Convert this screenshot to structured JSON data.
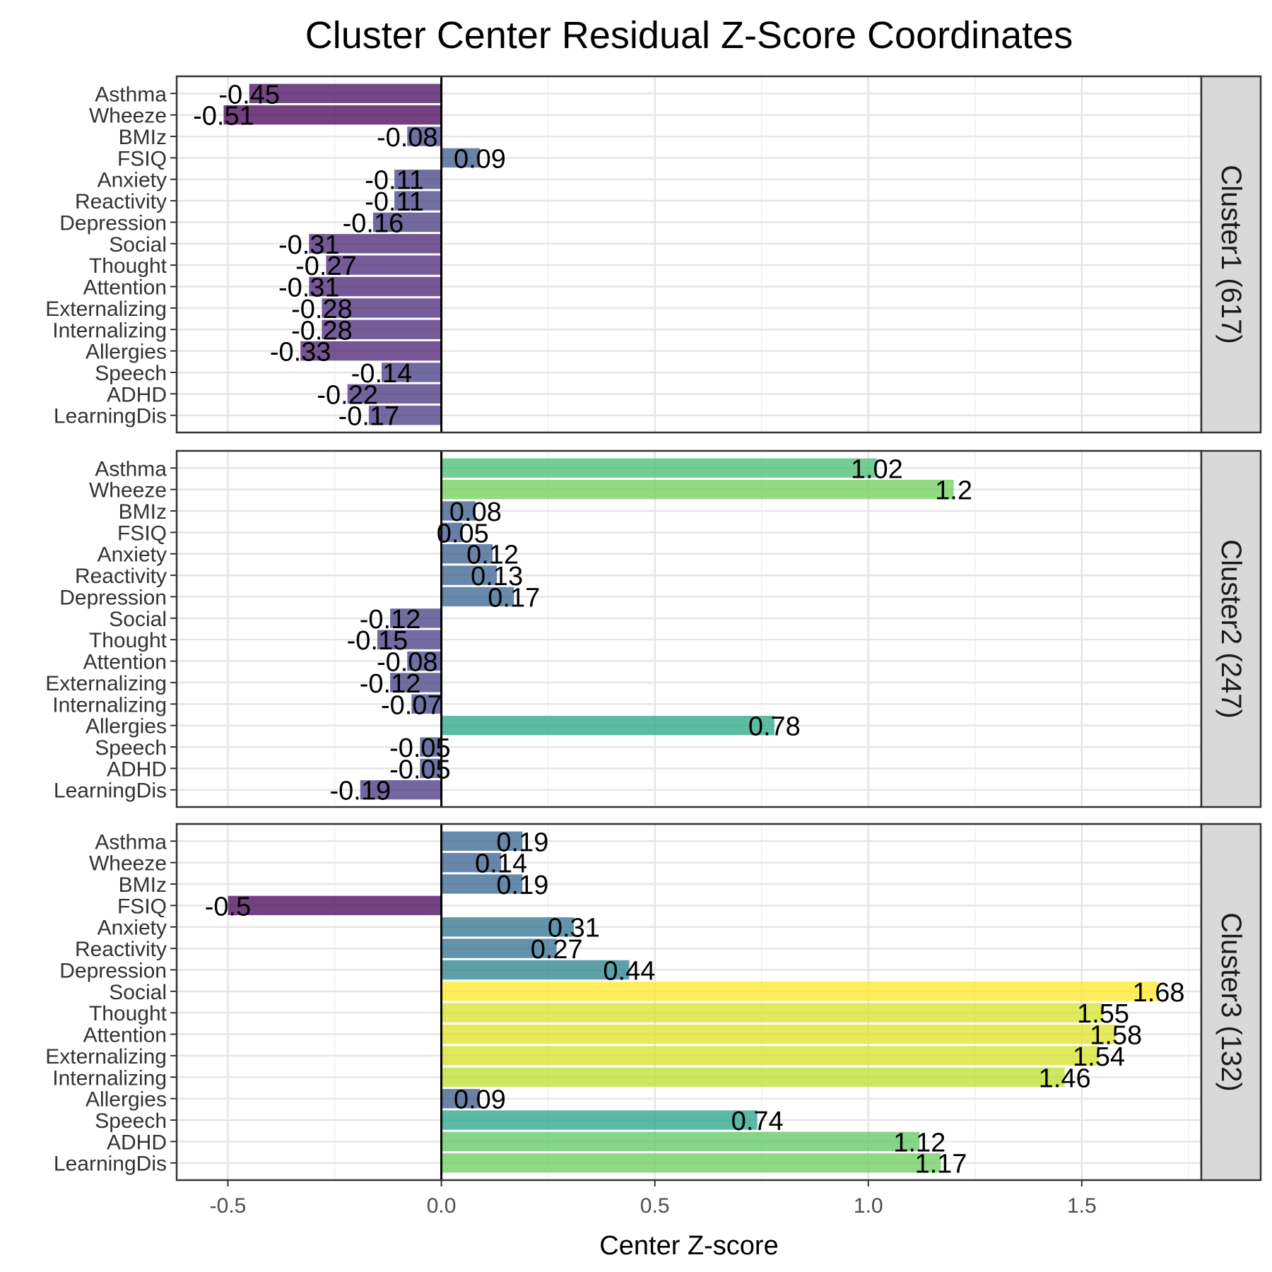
{
  "chart_data": {
    "type": "bar",
    "orientation": "horizontal",
    "title": "Cluster Center Residual Z-Score Coordinates",
    "xlabel": "Center Z-score",
    "xlim": [
      -0.62,
      1.78
    ],
    "xticks": [
      -0.5,
      0.0,
      0.5,
      1.0,
      1.5
    ],
    "xtick_labels": [
      "-0.5",
      "0.0",
      "0.5",
      "1.0",
      "1.5"
    ],
    "grid": true,
    "categories": [
      "Asthma",
      "Wheeze",
      "BMIz",
      "FSIQ",
      "Anxiety",
      "Reactivity",
      "Depression",
      "Social",
      "Thought",
      "Attention",
      "Externalizing",
      "Internalizing",
      "Allergies",
      "Speech",
      "ADHD",
      "LearningDis"
    ],
    "color_scale": "viridis",
    "color_range": [
      -0.51,
      1.68
    ],
    "panels": [
      {
        "name": "Cluster1 (617)",
        "values": [
          -0.45,
          -0.51,
          -0.08,
          0.09,
          -0.11,
          -0.11,
          -0.16,
          -0.31,
          -0.27,
          -0.31,
          -0.28,
          -0.28,
          -0.33,
          -0.14,
          -0.22,
          -0.17
        ],
        "labels": [
          "-0.45",
          "-0.51",
          "-0.08",
          "0.09",
          "-0.11",
          "-0.11",
          "-0.16",
          "-0.31",
          "-0.27",
          "-0.31",
          "-0.28",
          "-0.28",
          "-0.33",
          "-0.14",
          "-0.22",
          "-0.17"
        ]
      },
      {
        "name": "Cluster2 (247)",
        "values": [
          1.02,
          1.2,
          0.08,
          0.05,
          0.12,
          0.13,
          0.17,
          -0.12,
          -0.15,
          -0.08,
          -0.12,
          -0.07,
          0.78,
          -0.05,
          -0.05,
          -0.19
        ],
        "labels": [
          "1.02",
          "1.2",
          "0.08",
          "0.05",
          "0.12",
          "0.13",
          "0.17",
          "-0.12",
          "-0.15",
          "-0.08",
          "-0.12",
          "-0.07",
          "0.78",
          "-0.05",
          "-0.05",
          "-0.19"
        ]
      },
      {
        "name": "Cluster3 (132)",
        "values": [
          0.19,
          0.14,
          0.19,
          -0.5,
          0.31,
          0.27,
          0.44,
          1.68,
          1.55,
          1.58,
          1.54,
          1.46,
          0.09,
          0.74,
          1.12,
          1.17
        ],
        "labels": [
          "0.19",
          "0.14",
          "0.19",
          "-0.5",
          "0.31",
          "0.27",
          "0.44",
          "1.68",
          "1.55",
          "1.58",
          "1.54",
          "1.46",
          "0.09",
          "0.74",
          "1.12",
          "1.17"
        ]
      }
    ]
  }
}
